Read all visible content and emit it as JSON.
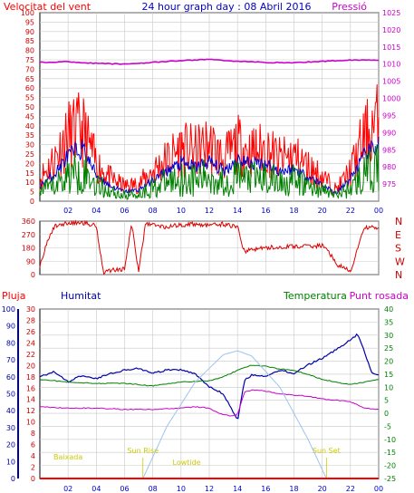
{
  "colors": {
    "wind_speed": "#ff0000",
    "wind_avg": "#0000cc",
    "wind_gust": "#008000",
    "pressure": "#cc00cc",
    "wind_dir": "#dd0000",
    "rain": "#ff0000",
    "humidity": "#0000aa",
    "temperature": "#008000",
    "dew_point": "#cc00cc",
    "solar": "#9cc3f0",
    "sun_text": "#cccc00",
    "grid": "#c8c8c8"
  },
  "chart_data": [
    {
      "type": "line",
      "title": "24 hour graph day : 08 Abril 2016",
      "left_label": "Velocitat del vent",
      "right_label": "Pressió",
      "x_ticks": [
        "02",
        "04",
        "06",
        "08",
        "10",
        "12",
        "14",
        "16",
        "18",
        "20",
        "22",
        "00"
      ],
      "y_left_ticks": [
        "0",
        "5",
        "10",
        "15",
        "20",
        "25",
        "30",
        "35",
        "40",
        "45",
        "50",
        "55",
        "60",
        "65",
        "70",
        "75",
        "80",
        "85",
        "90",
        "95",
        "100"
      ],
      "y_right_ticks": [
        "975",
        "980",
        "985",
        "990",
        "995",
        "1000",
        "1005",
        "1010",
        "1015",
        "1020",
        "1025"
      ],
      "ylim_left": [
        0,
        100
      ],
      "ylim_right": [
        970,
        1025
      ],
      "grid": true,
      "series": [
        {
          "key": "wind_speed",
          "axis": "left",
          "x": [
            0,
            1,
            2,
            3,
            4,
            5,
            6,
            7,
            8,
            9,
            10,
            11,
            12,
            13,
            14,
            15,
            16,
            17,
            18,
            19,
            20,
            21,
            22,
            23,
            24
          ],
          "values": [
            12,
            22,
            35,
            38,
            20,
            12,
            8,
            9,
            16,
            22,
            28,
            26,
            30,
            22,
            30,
            26,
            28,
            22,
            24,
            18,
            13,
            6,
            16,
            34,
            42
          ]
        },
        {
          "key": "wind_avg",
          "axis": "left",
          "x": [
            0,
            1,
            2,
            3,
            4,
            5,
            6,
            7,
            8,
            9,
            10,
            11,
            12,
            13,
            14,
            15,
            16,
            17,
            18,
            19,
            20,
            21,
            22,
            23,
            24
          ],
          "values": [
            8,
            14,
            24,
            28,
            14,
            8,
            5,
            6,
            11,
            16,
            20,
            18,
            21,
            16,
            22,
            20,
            20,
            16,
            17,
            13,
            9,
            4,
            12,
            24,
            30
          ]
        },
        {
          "key": "wind_gust",
          "axis": "left",
          "x": [
            0,
            1,
            2,
            3,
            4,
            5,
            6,
            7,
            8,
            9,
            10,
            11,
            12,
            13,
            14,
            15,
            16,
            17,
            18,
            19,
            20,
            21,
            22,
            23,
            24
          ],
          "values": [
            5,
            8,
            14,
            16,
            9,
            5,
            3,
            4,
            7,
            10,
            12,
            11,
            13,
            10,
            13,
            12,
            12,
            10,
            11,
            8,
            6,
            3,
            7,
            14,
            18
          ]
        },
        {
          "key": "pressure",
          "axis": "right",
          "x": [
            0,
            2,
            4,
            6,
            8,
            10,
            12,
            14,
            16,
            18,
            20,
            22,
            24
          ],
          "values": [
            1010.5,
            1010.7,
            1010.2,
            1010,
            1010.5,
            1011,
            1011.4,
            1010.8,
            1010.5,
            1010.4,
            1010.8,
            1011.2,
            1011.2
          ]
        }
      ]
    },
    {
      "type": "line",
      "title": "",
      "y_ticks": [
        "0",
        "90",
        "180",
        "270",
        "360"
      ],
      "right_labels": [
        "N",
        "W",
        "S",
        "E",
        "N"
      ],
      "ylim": [
        0,
        360
      ],
      "grid": true,
      "series": [
        {
          "key": "wind_dir",
          "x": [
            0,
            0.5,
            1,
            1.5,
            2,
            3,
            4,
            4.5,
            5,
            6,
            6.5,
            7,
            7.5,
            8,
            9,
            10,
            11,
            12,
            13,
            14,
            14.5,
            15,
            16,
            17,
            18,
            19,
            20,
            20.5,
            21,
            22,
            23,
            24
          ],
          "values": [
            60,
            210,
            320,
            340,
            345,
            350,
            330,
            15,
            30,
            40,
            340,
            20,
            350,
            335,
            320,
            335,
            340,
            330,
            340,
            320,
            150,
            170,
            180,
            185,
            190,
            190,
            195,
            150,
            70,
            20,
            320,
            310
          ]
        }
      ]
    },
    {
      "type": "line",
      "title": "",
      "labels": {
        "rain": "Pluja",
        "humidity": "Humitat",
        "temperature": "Temperatura",
        "dew_point": "Punt rosada"
      },
      "rain_ticks": [
        "0",
        "2",
        "4",
        "6",
        "8",
        "10",
        "12",
        "14",
        "16",
        "18",
        "20",
        "22",
        "24",
        "26",
        "28",
        "30"
      ],
      "humidity_ticks": [
        "0",
        "10",
        "20",
        "30",
        "40",
        "50",
        "60",
        "70",
        "80",
        "90",
        "100"
      ],
      "temp_ticks": [
        "-25",
        "-20",
        "-15",
        "-10",
        "-5",
        "0",
        "5",
        "10",
        "15",
        "20",
        "25",
        "30",
        "35",
        "40"
      ],
      "temp_lim": [
        -25,
        40
      ],
      "annotations": [
        {
          "text": "Baixada",
          "x": 2
        },
        {
          "text": "Sun Rise",
          "x": 7.3
        },
        {
          "text": "Lowtide",
          "x": 10.4
        },
        {
          "text": "Sun Set",
          "x": 20.3
        }
      ],
      "series": [
        {
          "key": "humidity",
          "axis": "humidity",
          "x": [
            0,
            1,
            2,
            3,
            4,
            5,
            6,
            7,
            8,
            9,
            10,
            11,
            12,
            13,
            13.5,
            14,
            14.5,
            15,
            16,
            17,
            18,
            19,
            20,
            21,
            22,
            22.5,
            23,
            23.5,
            24
          ],
          "values": [
            60,
            63,
            57,
            61,
            59,
            62,
            64,
            65,
            62,
            64,
            64,
            62,
            54,
            50,
            42,
            34,
            58,
            61,
            60,
            64,
            62,
            67,
            71,
            76,
            82,
            85,
            75,
            62,
            61
          ]
        },
        {
          "key": "temperature",
          "axis": "temp",
          "x": [
            0,
            2,
            4,
            6,
            8,
            10,
            12,
            13,
            14,
            15,
            16,
            17,
            18,
            19,
            20,
            21,
            22,
            23,
            24
          ],
          "values": [
            13,
            12,
            11.5,
            11.5,
            10.5,
            12,
            12.5,
            14,
            16.5,
            18.5,
            18,
            17,
            16.5,
            15,
            13,
            12,
            11,
            12,
            13
          ]
        },
        {
          "key": "dew_point",
          "axis": "temp",
          "x": [
            0,
            2,
            4,
            6,
            8,
            10,
            11,
            12,
            12.5,
            13,
            13.5,
            14,
            14.5,
            15,
            16,
            17,
            18,
            19,
            20,
            21,
            22,
            23,
            24
          ],
          "values": [
            2.5,
            2,
            2,
            1.5,
            1.5,
            2,
            2.5,
            2,
            0.5,
            -0.5,
            -1,
            -0.5,
            8,
            9,
            8.5,
            7.5,
            7,
            6.5,
            5.5,
            5,
            4.5,
            2,
            1.5
          ]
        },
        {
          "key": "solar",
          "axis": "temp",
          "x": [
            7.3,
            9,
            11,
            13,
            14,
            15,
            17,
            19,
            20.3
          ],
          "values": [
            -25,
            -5,
            12,
            22.5,
            24,
            22,
            10,
            -10,
            -25
          ]
        },
        {
          "key": "rain",
          "axis": "rain",
          "x": [
            0,
            24
          ],
          "values": [
            0,
            0
          ]
        }
      ]
    }
  ]
}
